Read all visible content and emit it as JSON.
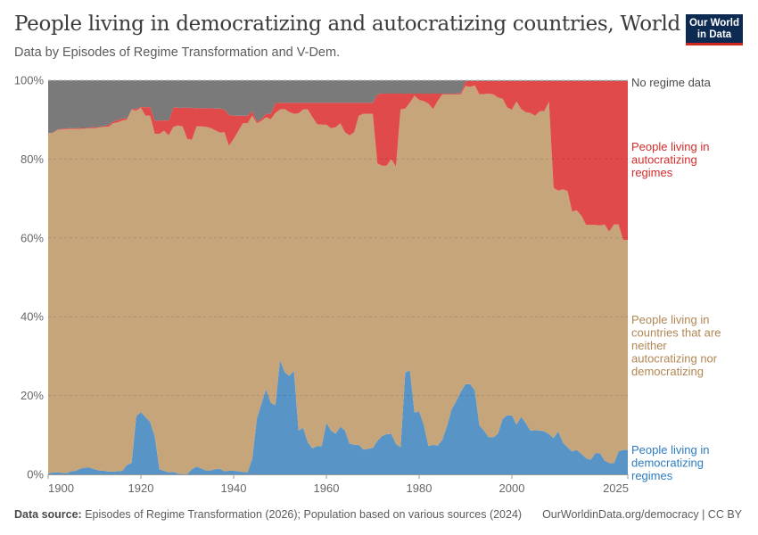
{
  "header": {
    "title": "People living in democratizing and autocratizing countries, World",
    "subtitle": "Data by Episodes of Regime Transformation and V-Dem.",
    "logo_text": "Our World in Data"
  },
  "footer": {
    "source_label": "Data source:",
    "source_text": "Episodes of Regime Transformation (2026); Population based on various sources (2024)",
    "link": "OurWorldinData.org/democracy | CC BY"
  },
  "colors": {
    "democratizing": "#5894c6",
    "neither": "#c6a57a",
    "autocratizing": "#e04a4a",
    "no_data": "#7a7a7a"
  },
  "chart_data": {
    "type": "area",
    "stacked": true,
    "title": "People living in democratizing and autocratizing countries, World",
    "x_range": [
      1900,
      2025
    ],
    "ylim": [
      0,
      100
    ],
    "y_unit": "%",
    "grid": "horizontal dashed",
    "x_ticks": [
      "1900",
      "1920",
      "1940",
      "1960",
      "1980",
      "2000",
      "2025"
    ],
    "y_ticks": [
      "0%",
      "20%",
      "40%",
      "60%",
      "80%",
      "100%"
    ],
    "legend_placement": "right (inline labels)",
    "x_start": 1900,
    "x_step": 1,
    "series": [
      {
        "name": "People living in democratizing regimes",
        "color": "#5894c6",
        "label_color": "#2e7bbf",
        "values": [
          0.2,
          0.5,
          0.5,
          0.4,
          0.3,
          0.8,
          0.9,
          1.5,
          1.7,
          1.7,
          1.3,
          1.0,
          0.9,
          0.7,
          0.7,
          0.8,
          0.9,
          2.4,
          2.9,
          14.8,
          15.8,
          14.5,
          13.3,
          9.6,
          1.3,
          0.9,
          0.5,
          0.6,
          0.2,
          0.1,
          0.1,
          1.3,
          2.0,
          1.5,
          1.0,
          1.0,
          1.3,
          1.4,
          0.8,
          0.9,
          0.9,
          0.8,
          0.6,
          0.5,
          3.9,
          14.1,
          18.0,
          21.6,
          18.2,
          17.5,
          29.0,
          25.9,
          25.0,
          26.3,
          11.1,
          11.8,
          8.1,
          6.6,
          7.2,
          7.2,
          13.1,
          11.1,
          10.3,
          12.1,
          11.1,
          7.8,
          7.5,
          7.5,
          6.3,
          6.5,
          6.7,
          8.5,
          9.7,
          10.2,
          10.3,
          7.7,
          6.9,
          25.8,
          26.5,
          15.7,
          16.0,
          12.6,
          7.2,
          7.5,
          7.3,
          8.8,
          12.2,
          16.5,
          18.6,
          21.0,
          22.9,
          22.9,
          21.3,
          12.4,
          11.1,
          9.4,
          9.4,
          10.3,
          14.1,
          15.0,
          15.0,
          12.6,
          14.6,
          13.0,
          11.1,
          11.2,
          11.1,
          10.9,
          10.2,
          9.2,
          10.9,
          8.1,
          6.9,
          5.8,
          6.2,
          5.2,
          4.1,
          3.7,
          5.4,
          5.4,
          3.5,
          2.9,
          2.8,
          5.8,
          6.2,
          6.2
        ]
      },
      {
        "name": "People living in countries that are neither autocratizing nor democratizing",
        "color": "#c6a57a",
        "label_color": "#b08654",
        "values": [
          86.4,
          86.1,
          86.9,
          87.1,
          87.3,
          86.8,
          86.7,
          86.2,
          86.0,
          86.1,
          86.5,
          87.0,
          87.3,
          87.5,
          88.4,
          88.5,
          88.9,
          87.6,
          89.6,
          77.5,
          77.2,
          76.5,
          77.7,
          76.8,
          85.1,
          86.3,
          85.5,
          87.6,
          88.3,
          88.2,
          85.0,
          83.6,
          86.3,
          86.8,
          87.2,
          86.9,
          86.0,
          85.3,
          86.0,
          82.5,
          84.2,
          86.3,
          88.5,
          88.6,
          87.1,
          75.0,
          71.7,
          69.0,
          71.9,
          74.2,
          63.6,
          66.8,
          66.9,
          65.2,
          80.5,
          80.8,
          84.5,
          84.0,
          81.7,
          81.5,
          75.6,
          76.7,
          77.8,
          77.0,
          75.7,
          78.2,
          79.3,
          83.5,
          85.2,
          85.0,
          84.8,
          70.4,
          68.6,
          68.1,
          69.7,
          70.4,
          85.7,
          67.0,
          67.8,
          80.4,
          79.0,
          82.1,
          86.9,
          85.2,
          87.4,
          87.6,
          84.2,
          79.9,
          77.8,
          75.4,
          75.7,
          75.4,
          77.4,
          84.0,
          85.4,
          87.2,
          87.0,
          85.3,
          81.2,
          78.1,
          77.5,
          82.0,
          78.1,
          78.9,
          80.6,
          79.8,
          81.0,
          81.3,
          84.3,
          63.5,
          61.1,
          64.2,
          65.0,
          60.9,
          60.8,
          60.4,
          59.2,
          59.6,
          57.9,
          57.8,
          59.9,
          58.7,
          60.6,
          57.6,
          53.3,
          53.3
        ]
      },
      {
        "name": "People living in autocratizing regimes",
        "color": "#e04a4a",
        "label_color": "#d42b2b",
        "values": [
          0.0,
          0.1,
          0.1,
          0.2,
          0.2,
          0.2,
          0.2,
          0.2,
          0.2,
          0.2,
          0.3,
          0.2,
          0.2,
          0.4,
          0.4,
          0.6,
          0.5,
          0.3,
          0.1,
          0.5,
          0.2,
          2.2,
          2.2,
          3.4,
          3.4,
          2.6,
          3.8,
          4.9,
          4.5,
          4.7,
          7.9,
          8.1,
          4.6,
          4.6,
          4.7,
          5.0,
          5.5,
          6.1,
          5.8,
          7.8,
          5.9,
          3.9,
          1.9,
          1.9,
          1.2,
          0.4,
          0.5,
          0.9,
          1.4,
          2.5,
          1.7,
          1.6,
          2.4,
          2.8,
          2.7,
          1.7,
          1.7,
          3.7,
          5.4,
          5.6,
          5.6,
          6.5,
          6.2,
          5.2,
          7.5,
          8.3,
          7.5,
          3.3,
          2.8,
          2.8,
          2.8,
          17.5,
          18.3,
          18.3,
          16.6,
          18.5,
          4.0,
          3.8,
          2.3,
          0.5,
          1.6,
          1.9,
          2.5,
          3.9,
          1.9,
          0.2,
          0.2,
          0.2,
          0.2,
          0.4,
          1.2,
          1.5,
          1.1,
          3.4,
          3.3,
          3.2,
          3.4,
          4.2,
          4.5,
          6.7,
          7.3,
          5.2,
          7.1,
          7.9,
          8.1,
          8.8,
          7.7,
          7.6,
          5.3,
          27.1,
          27.8,
          27.5,
          27.9,
          33.1,
          32.8,
          34.2,
          36.5,
          36.5,
          36.5,
          36.6,
          36.4,
          38.2,
          36.4,
          36.4,
          40.3,
          40.3
        ]
      },
      {
        "name": "No regime data",
        "color": "#7a7a7a",
        "label_color": "#4a4a4a",
        "values": [
          13.4,
          13.3,
          12.5,
          12.3,
          12.2,
          12.2,
          12.2,
          12.1,
          12.1,
          12.0,
          11.9,
          11.8,
          11.6,
          11.4,
          10.5,
          10.1,
          9.7,
          9.7,
          7.4,
          7.2,
          6.8,
          6.8,
          6.8,
          10.2,
          10.2,
          10.2,
          10.2,
          6.9,
          7.0,
          7.0,
          7.0,
          7.0,
          7.1,
          7.1,
          7.1,
          7.1,
          7.2,
          7.2,
          7.4,
          8.8,
          9.0,
          9.0,
          9.0,
          9.0,
          7.8,
          10.5,
          9.8,
          8.5,
          8.5,
          5.8,
          5.7,
          5.7,
          5.7,
          5.7,
          5.7,
          5.7,
          5.7,
          5.7,
          5.7,
          5.7,
          5.7,
          5.7,
          5.7,
          5.7,
          5.7,
          5.7,
          5.7,
          5.7,
          5.7,
          5.7,
          5.7,
          3.6,
          3.4,
          3.4,
          3.4,
          3.4,
          3.4,
          3.4,
          3.4,
          3.4,
          3.4,
          3.4,
          3.4,
          3.4,
          3.4,
          3.4,
          3.4,
          3.4,
          3.4,
          3.2,
          0.2,
          0.2,
          0.2,
          0.2,
          0.2,
          0.2,
          0.2,
          0.2,
          0.2,
          0.2,
          0.2,
          0.2,
          0.2,
          0.2,
          0.2,
          0.2,
          0.2,
          0.2,
          0.2,
          0.2,
          0.2,
          0.2,
          0.2,
          0.2,
          0.2,
          0.2,
          0.2,
          0.2,
          0.2,
          0.2,
          0.2,
          0.2,
          0.2,
          0.2,
          0.2,
          0.2
        ]
      }
    ],
    "labels": {
      "no_data": [
        "No regime data"
      ],
      "autocratizing": [
        "People living in",
        "autocratizing",
        "regimes"
      ],
      "neither": [
        "People living in",
        "countries that are",
        "neither",
        "autocratizing nor",
        "democratizing"
      ],
      "democratizing": [
        "People living in",
        "democratizing",
        "regimes"
      ]
    }
  }
}
